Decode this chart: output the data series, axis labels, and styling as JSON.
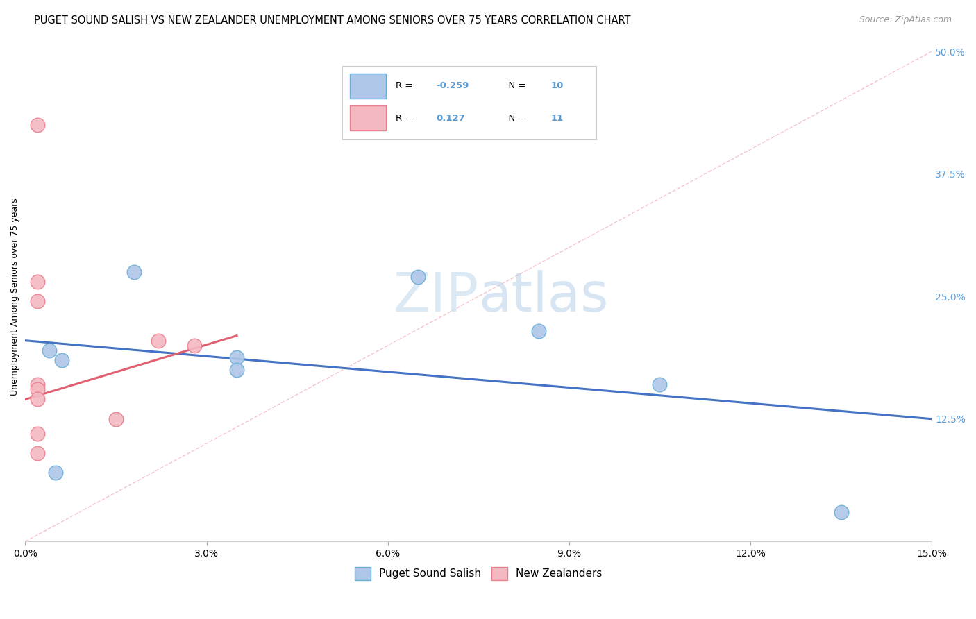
{
  "title": "PUGET SOUND SALISH VS NEW ZEALANDER UNEMPLOYMENT AMONG SENIORS OVER 75 YEARS CORRELATION CHART",
  "source": "Source: ZipAtlas.com",
  "ylabel": "Unemployment Among Seniors over 75 years",
  "x_tick_labels": [
    "0.0%",
    "3.0%",
    "6.0%",
    "9.0%",
    "12.0%",
    "15.0%"
  ],
  "x_tick_values": [
    0.0,
    3.0,
    6.0,
    9.0,
    12.0,
    15.0
  ],
  "y_tick_labels_right": [
    "50.0%",
    "37.5%",
    "25.0%",
    "12.5%"
  ],
  "y_tick_values_right": [
    50.0,
    37.5,
    25.0,
    12.5
  ],
  "xlim": [
    0.0,
    15.0
  ],
  "ylim": [
    0.0,
    50.0
  ],
  "legend_r_blue": "-0.259",
  "legend_n_blue": "10",
  "legend_r_pink": "0.127",
  "legend_n_pink": "11",
  "legend_label_blue": "Puget Sound Salish",
  "legend_label_pink": "New Zealanders",
  "blue_points": [
    [
      0.4,
      19.5
    ],
    [
      0.6,
      18.5
    ],
    [
      1.8,
      27.5
    ],
    [
      3.5,
      18.8
    ],
    [
      3.5,
      17.5
    ],
    [
      6.5,
      27.0
    ],
    [
      8.5,
      21.5
    ],
    [
      10.5,
      16.0
    ],
    [
      0.5,
      7.0
    ],
    [
      13.5,
      3.0
    ]
  ],
  "pink_points": [
    [
      0.2,
      42.5
    ],
    [
      0.2,
      26.5
    ],
    [
      0.2,
      24.5
    ],
    [
      0.2,
      16.0
    ],
    [
      0.2,
      15.5
    ],
    [
      0.2,
      14.5
    ],
    [
      0.2,
      11.0
    ],
    [
      0.2,
      9.0
    ],
    [
      2.2,
      20.5
    ],
    [
      2.8,
      20.0
    ],
    [
      1.5,
      12.5
    ]
  ],
  "blue_line_x": [
    0.0,
    15.0
  ],
  "blue_line_y": [
    20.5,
    12.5
  ],
  "pink_solid_line_x": [
    0.0,
    3.5
  ],
  "pink_solid_line_y": [
    14.5,
    21.0
  ],
  "pink_dashed_line_x": [
    0.0,
    15.0
  ],
  "pink_dashed_line_y": [
    0.0,
    50.0
  ],
  "title_fontsize": 10.5,
  "source_fontsize": 9,
  "axis_label_fontsize": 9,
  "tick_fontsize": 10,
  "legend_fontsize": 11,
  "background_color": "#ffffff",
  "grid_color": "#dddddd",
  "blue_line_color": "#4472c4",
  "pink_line_color": "#e06070",
  "blue_dot_face": "#aec6e8",
  "blue_dot_edge": "#6aaed6",
  "pink_dot_face": "#f4b8c1",
  "pink_dot_edge": "#e87f8f",
  "blue_text_color": "#5b9bd5",
  "watermark_color": "#cce0f0",
  "dot_size": 220
}
